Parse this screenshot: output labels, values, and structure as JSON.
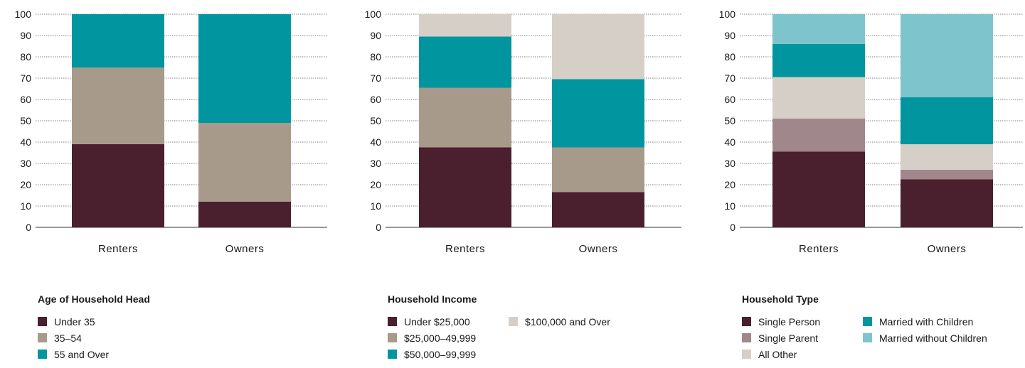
{
  "chart_data": [
    {
      "type": "bar",
      "stacked": true,
      "categories": [
        "Renters",
        "Owners"
      ],
      "yticks": [
        "0",
        "10",
        "20",
        "30",
        "40",
        "50",
        "60",
        "70",
        "80",
        "90",
        "100"
      ],
      "ylim": [
        0,
        100
      ],
      "grid": true,
      "legend_title": "Age of Household Head",
      "series": [
        {
          "name": "Under 35",
          "color": "#4a1f2e",
          "values": [
            39,
            12
          ]
        },
        {
          "name": "35–54",
          "color": "#a89a8b",
          "values": [
            36,
            37
          ]
        },
        {
          "name": "55 and Over",
          "color": "#00959f",
          "values": [
            25,
            51
          ]
        }
      ]
    },
    {
      "type": "bar",
      "stacked": true,
      "categories": [
        "Renters",
        "Owners"
      ],
      "yticks": [
        "0",
        "10",
        "20",
        "30",
        "40",
        "50",
        "60",
        "70",
        "80",
        "90",
        "100"
      ],
      "ylim": [
        0,
        100
      ],
      "grid": true,
      "legend_title": "Household Income",
      "series": [
        {
          "name": "Under $25,000",
          "color": "#4a1f2e",
          "values": [
            37.5,
            16.5
          ]
        },
        {
          "name": "$25,000–49,999",
          "color": "#a89a8b",
          "values": [
            28,
            21
          ]
        },
        {
          "name": "$50,000–99,999",
          "color": "#00959f",
          "values": [
            24,
            32
          ]
        },
        {
          "name": "$100,000 and Over",
          "color": "#d6cfc8",
          "values": [
            10.5,
            30.5
          ]
        }
      ]
    },
    {
      "type": "bar",
      "stacked": true,
      "categories": [
        "Renters",
        "Owners"
      ],
      "yticks": [
        "0",
        "10",
        "20",
        "30",
        "40",
        "50",
        "60",
        "70",
        "80",
        "90",
        "100"
      ],
      "ylim": [
        0,
        100
      ],
      "grid": true,
      "legend_title": "Household Type",
      "series": [
        {
          "name": "Single Person",
          "color": "#4a1f2e",
          "values": [
            35.5,
            22.5
          ]
        },
        {
          "name": "Single Parent",
          "color": "#a0878b",
          "values": [
            15.5,
            4.5
          ]
        },
        {
          "name": "All Other",
          "color": "#d6cfc8",
          "values": [
            19.5,
            12
          ]
        },
        {
          "name": "Married with Children",
          "color": "#00959f",
          "values": [
            15.5,
            22
          ]
        },
        {
          "name": "Married without Children",
          "color": "#7ec4cc",
          "values": [
            14,
            39
          ]
        }
      ]
    }
  ]
}
